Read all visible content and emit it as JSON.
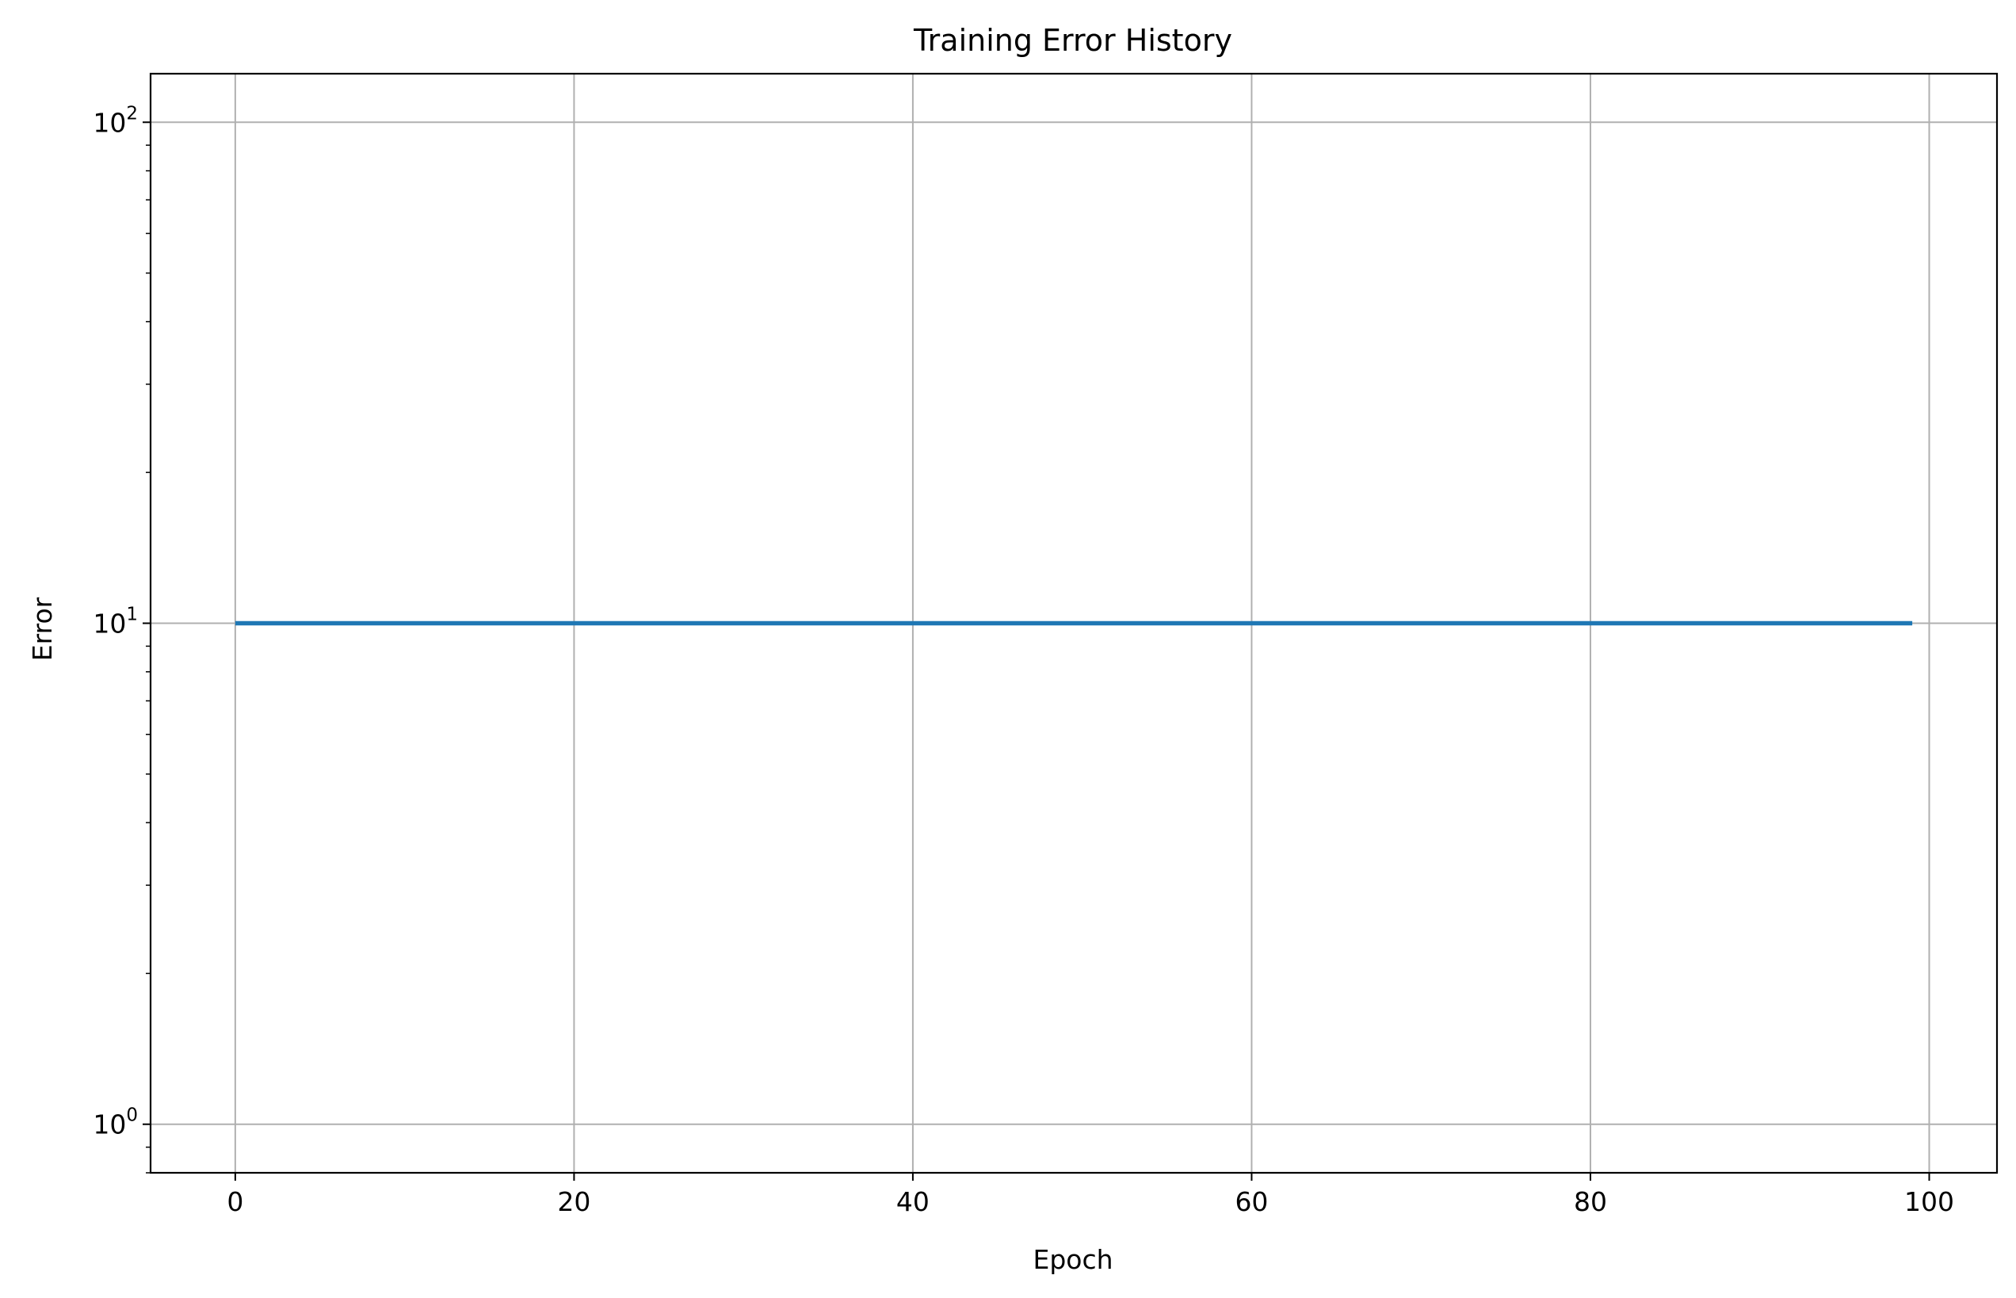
{
  "chart_data": {
    "type": "line",
    "title": "Training Error History",
    "xlabel": "Epoch",
    "ylabel": "Error",
    "xlim": [
      -5,
      104
    ],
    "ylim": [
      0.8,
      125
    ],
    "yscale": "log",
    "grid": true,
    "xticks": [
      0,
      20,
      40,
      60,
      80,
      100
    ],
    "yticks": [
      {
        "value": 1,
        "base": "10",
        "exp": "0"
      },
      {
        "value": 10,
        "base": "10",
        "exp": "1"
      },
      {
        "value": 100,
        "base": "10",
        "exp": "2"
      }
    ],
    "series": [
      {
        "color": "#1f77b4",
        "x": [
          0,
          99
        ],
        "y": [
          10,
          10
        ]
      }
    ]
  }
}
